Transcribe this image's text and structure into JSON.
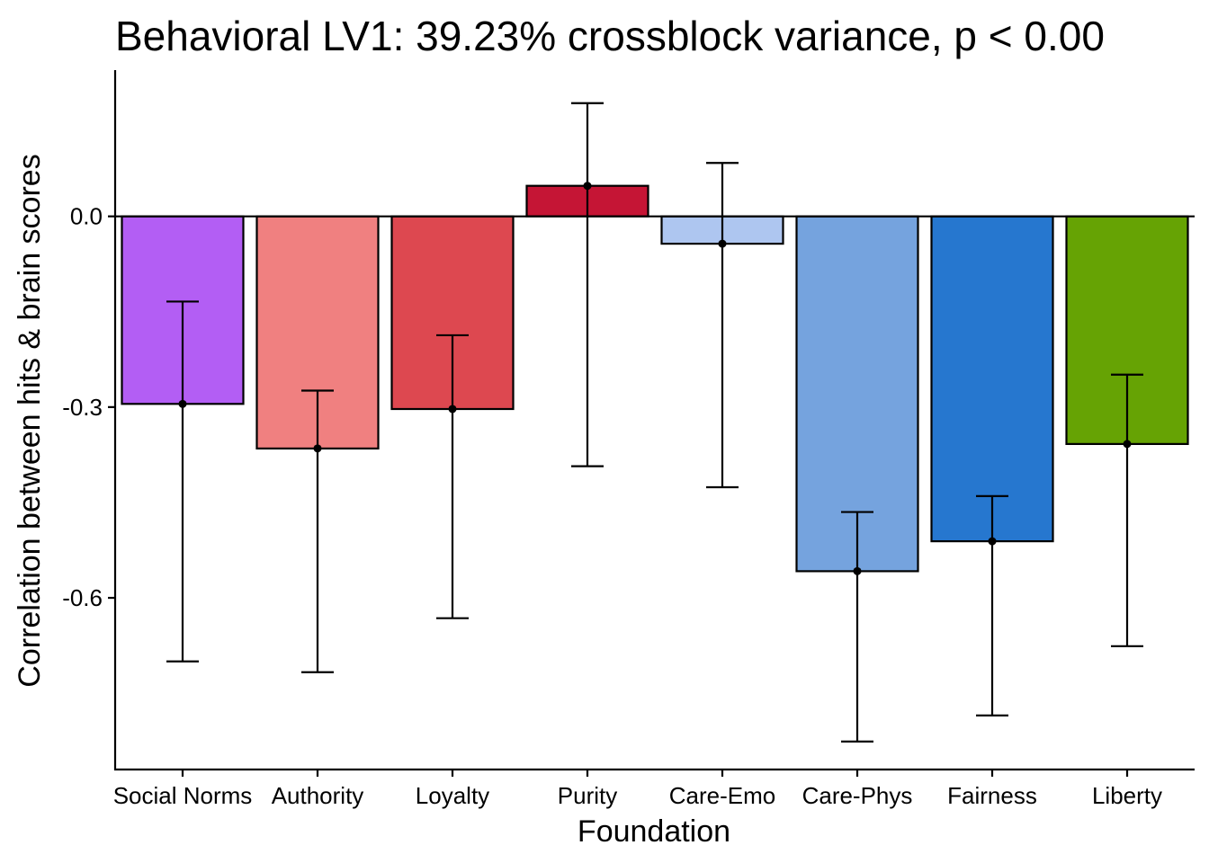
{
  "chart_data": {
    "type": "bar",
    "title": "Behavioral LV1: 39.23% crossblock variance, p < 0.00",
    "xlabel": "Foundation",
    "ylabel": "Correlation between hits & brain scores",
    "categories": [
      "Social Norms",
      "Authority",
      "Loyalty",
      "Purity",
      "Care-Emo",
      "Care-Phys",
      "Fairness",
      "Liberty"
    ],
    "values": [
      -0.295,
      -0.365,
      -0.303,
      0.048,
      -0.043,
      -0.558,
      -0.511,
      -0.358
    ],
    "error_low": [
      -0.7,
      -0.717,
      -0.632,
      -0.393,
      -0.426,
      -0.826,
      -0.785,
      -0.676
    ],
    "error_high": [
      -0.134,
      -0.274,
      -0.187,
      0.178,
      0.084,
      -0.465,
      -0.44,
      -0.249
    ],
    "colors": [
      "#b35ef4",
      "#f08080",
      "#dd4850",
      "#c51535",
      "#aec6f0",
      "#75a3de",
      "#2677cf",
      "#66a304"
    ],
    "ylim": [
      -0.87,
      0.23
    ],
    "yticks": [
      0.0,
      -0.3,
      -0.6
    ],
    "ytick_labels": [
      "0.0",
      "-0.3",
      "-0.6"
    ],
    "zero_line": true,
    "grid": false,
    "legend": "none"
  }
}
